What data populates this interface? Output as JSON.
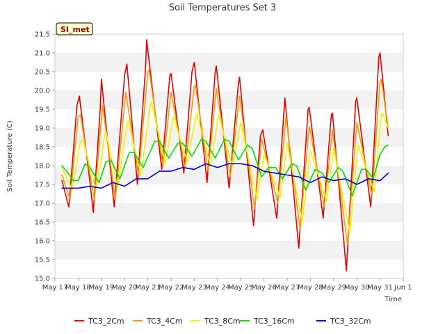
{
  "chart_data": {
    "type": "line",
    "title": "Soil Temperatures Set 3",
    "xlabel": "Time",
    "ylabel": "Soil Temperature (C)",
    "badge": "SI_met",
    "x_ticks": [
      "May 17",
      "May 18",
      "May 19",
      "May 20",
      "May 21",
      "May 22",
      "May 23",
      "May 24",
      "May 25",
      "May 26",
      "May 27",
      "May 28",
      "May 29",
      "May 30",
      "May 31",
      "Jun 1"
    ],
    "xlim": [
      0,
      15
    ],
    "ylim": [
      15.0,
      21.5
    ],
    "y_ticks": [
      "15.0",
      "15.5",
      "16.0",
      "16.5",
      "17.0",
      "17.5",
      "18.0",
      "18.5",
      "19.0",
      "19.5",
      "20.0",
      "20.5",
      "21.0",
      "21.5"
    ],
    "grid": "horizontal bands",
    "legend_position": "bottom",
    "series": [
      {
        "name": "TC3_2Cm",
        "color": "#e00000",
        "points": [
          [
            0.3,
            17.6
          ],
          [
            0.6,
            16.9
          ],
          [
            0.95,
            19.6
          ],
          [
            1.05,
            19.85
          ],
          [
            1.5,
            17.6
          ],
          [
            1.65,
            16.75
          ],
          [
            1.95,
            19.5
          ],
          [
            2.0,
            20.3
          ],
          [
            2.55,
            16.9
          ],
          [
            3.0,
            20.4
          ],
          [
            3.1,
            20.7
          ],
          [
            3.55,
            17.5
          ],
          [
            3.9,
            20.6
          ],
          [
            3.95,
            21.35
          ],
          [
            4.6,
            17.9
          ],
          [
            4.95,
            20.4
          ],
          [
            5.0,
            20.45
          ],
          [
            5.55,
            17.8
          ],
          [
            5.9,
            20.5
          ],
          [
            6.0,
            20.75
          ],
          [
            6.55,
            17.55
          ],
          [
            6.9,
            20.5
          ],
          [
            6.95,
            20.65
          ],
          [
            7.5,
            17.4
          ],
          [
            7.9,
            20.2
          ],
          [
            7.95,
            20.35
          ],
          [
            8.55,
            16.4
          ],
          [
            8.85,
            18.8
          ],
          [
            8.95,
            18.95
          ],
          [
            9.55,
            16.6
          ],
          [
            9.9,
            19.8
          ],
          [
            10.5,
            15.8
          ],
          [
            10.9,
            19.5
          ],
          [
            10.95,
            19.55
          ],
          [
            11.55,
            16.6
          ],
          [
            11.9,
            19.35
          ],
          [
            11.95,
            19.4
          ],
          [
            12.55,
            15.2
          ],
          [
            12.95,
            19.7
          ],
          [
            13.0,
            19.8
          ],
          [
            13.6,
            16.9
          ],
          [
            13.95,
            20.9
          ],
          [
            14.0,
            21.0
          ],
          [
            14.35,
            18.8
          ]
        ]
      },
      {
        "name": "TC3_4Cm",
        "color": "#f59b00",
        "points": [
          [
            0.3,
            17.75
          ],
          [
            0.65,
            17.1
          ],
          [
            1.0,
            19.3
          ],
          [
            1.1,
            19.35
          ],
          [
            1.55,
            17.6
          ],
          [
            1.7,
            17.1
          ],
          [
            2.05,
            19.6
          ],
          [
            2.6,
            17.1
          ],
          [
            3.05,
            19.95
          ],
          [
            3.6,
            17.75
          ],
          [
            4.0,
            20.5
          ],
          [
            4.05,
            20.55
          ],
          [
            4.65,
            18.0
          ],
          [
            5.0,
            19.95
          ],
          [
            5.6,
            17.95
          ],
          [
            6.0,
            20.1
          ],
          [
            6.05,
            20.15
          ],
          [
            6.6,
            17.85
          ],
          [
            6.95,
            20.05
          ],
          [
            7.55,
            17.7
          ],
          [
            7.95,
            19.85
          ],
          [
            8.6,
            16.85
          ],
          [
            8.9,
            18.7
          ],
          [
            9.6,
            17.0
          ],
          [
            9.95,
            19.3
          ],
          [
            10.55,
            16.3
          ],
          [
            10.95,
            19.05
          ],
          [
            11.6,
            16.9
          ],
          [
            11.95,
            18.95
          ],
          [
            12.6,
            15.9
          ],
          [
            13.0,
            19.15
          ],
          [
            13.65,
            17.2
          ],
          [
            14.0,
            20.25
          ],
          [
            14.05,
            20.3
          ],
          [
            14.35,
            19.0
          ]
        ]
      },
      {
        "name": "TC3_8Cm",
        "color": "#f2f200",
        "points": [
          [
            0.3,
            17.95
          ],
          [
            0.75,
            17.35
          ],
          [
            1.1,
            18.65
          ],
          [
            1.2,
            18.7
          ],
          [
            1.7,
            17.5
          ],
          [
            1.8,
            17.4
          ],
          [
            2.15,
            18.85
          ],
          [
            2.2,
            18.9
          ],
          [
            2.7,
            17.4
          ],
          [
            3.1,
            19.1
          ],
          [
            3.15,
            19.2
          ],
          [
            3.7,
            17.75
          ],
          [
            4.1,
            19.6
          ],
          [
            4.15,
            19.7
          ],
          [
            4.75,
            18.05
          ],
          [
            5.1,
            19.3
          ],
          [
            5.7,
            18.1
          ],
          [
            6.1,
            19.4
          ],
          [
            6.7,
            18.0
          ],
          [
            7.05,
            19.35
          ],
          [
            7.65,
            17.95
          ],
          [
            8.0,
            19.15
          ],
          [
            8.7,
            17.1
          ],
          [
            9.0,
            18.3
          ],
          [
            9.7,
            17.15
          ],
          [
            10.0,
            18.6
          ],
          [
            10.65,
            16.5
          ],
          [
            11.0,
            18.4
          ],
          [
            11.7,
            17.05
          ],
          [
            12.0,
            18.45
          ],
          [
            12.7,
            16.2
          ],
          [
            13.05,
            18.55
          ],
          [
            13.75,
            17.3
          ],
          [
            14.05,
            19.35
          ],
          [
            14.1,
            19.4
          ],
          [
            14.35,
            19.0
          ]
        ]
      },
      {
        "name": "TC3_16Cm",
        "color": "#00e000",
        "points": [
          [
            0.3,
            18.0
          ],
          [
            0.5,
            17.85
          ],
          [
            0.8,
            17.6
          ],
          [
            1.0,
            17.6
          ],
          [
            1.3,
            18.05
          ],
          [
            1.5,
            17.95
          ],
          [
            1.9,
            17.55
          ],
          [
            2.2,
            18.1
          ],
          [
            2.4,
            18.15
          ],
          [
            2.8,
            17.65
          ],
          [
            3.2,
            18.35
          ],
          [
            3.4,
            18.35
          ],
          [
            3.8,
            17.95
          ],
          [
            4.3,
            18.65
          ],
          [
            4.5,
            18.65
          ],
          [
            4.9,
            18.2
          ],
          [
            5.3,
            18.6
          ],
          [
            5.5,
            18.6
          ],
          [
            5.9,
            18.25
          ],
          [
            6.3,
            18.7
          ],
          [
            6.5,
            18.65
          ],
          [
            6.9,
            18.2
          ],
          [
            7.3,
            18.7
          ],
          [
            7.5,
            18.65
          ],
          [
            7.9,
            18.15
          ],
          [
            8.3,
            18.55
          ],
          [
            8.5,
            18.45
          ],
          [
            8.9,
            17.7
          ],
          [
            9.2,
            17.95
          ],
          [
            9.5,
            17.95
          ],
          [
            9.8,
            17.65
          ],
          [
            10.2,
            18.05
          ],
          [
            10.4,
            18.0
          ],
          [
            10.8,
            17.35
          ],
          [
            11.2,
            17.9
          ],
          [
            11.5,
            17.8
          ],
          [
            11.8,
            17.55
          ],
          [
            12.2,
            17.95
          ],
          [
            12.4,
            17.85
          ],
          [
            12.8,
            17.2
          ],
          [
            13.2,
            17.9
          ],
          [
            13.4,
            17.9
          ],
          [
            13.7,
            17.65
          ],
          [
            14.0,
            18.3
          ],
          [
            14.2,
            18.5
          ],
          [
            14.35,
            18.55
          ]
        ]
      },
      {
        "name": "TC3_32Cm",
        "color": "#0000c8",
        "points": [
          [
            0.3,
            17.4
          ],
          [
            1.0,
            17.4
          ],
          [
            1.5,
            17.45
          ],
          [
            2.0,
            17.4
          ],
          [
            2.5,
            17.55
          ],
          [
            3.0,
            17.45
          ],
          [
            3.5,
            17.65
          ],
          [
            4.0,
            17.65
          ],
          [
            4.5,
            17.85
          ],
          [
            5.0,
            17.85
          ],
          [
            5.5,
            17.95
          ],
          [
            6.0,
            17.9
          ],
          [
            6.5,
            18.05
          ],
          [
            7.0,
            17.95
          ],
          [
            7.5,
            18.05
          ],
          [
            8.0,
            18.05
          ],
          [
            8.5,
            18.0
          ],
          [
            9.0,
            17.85
          ],
          [
            9.5,
            17.8
          ],
          [
            10.0,
            17.75
          ],
          [
            10.5,
            17.7
          ],
          [
            11.0,
            17.55
          ],
          [
            11.5,
            17.7
          ],
          [
            12.0,
            17.6
          ],
          [
            12.5,
            17.65
          ],
          [
            13.0,
            17.5
          ],
          [
            13.5,
            17.65
          ],
          [
            14.0,
            17.6
          ],
          [
            14.35,
            17.8
          ]
        ]
      }
    ]
  }
}
